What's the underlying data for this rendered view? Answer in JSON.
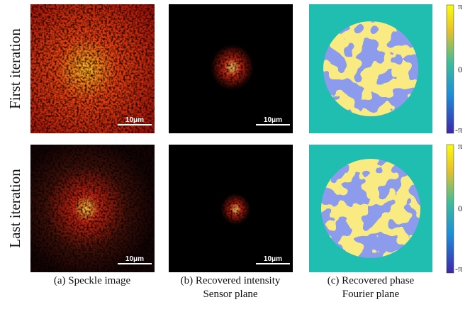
{
  "rows": [
    {
      "label": "First iteration"
    },
    {
      "label": "Last iteration"
    }
  ],
  "scale_bar": "10μm",
  "colorbar": {
    "ticks": [
      "π",
      "0",
      "-π"
    ]
  },
  "captions": [
    {
      "line1": "(a) Speckle image"
    },
    {
      "line1": "(b) Recovered intensity",
      "line2": "Sensor plane"
    },
    {
      "line1": "(c) Recovered phase",
      "line2": "Fourier plane"
    }
  ]
}
